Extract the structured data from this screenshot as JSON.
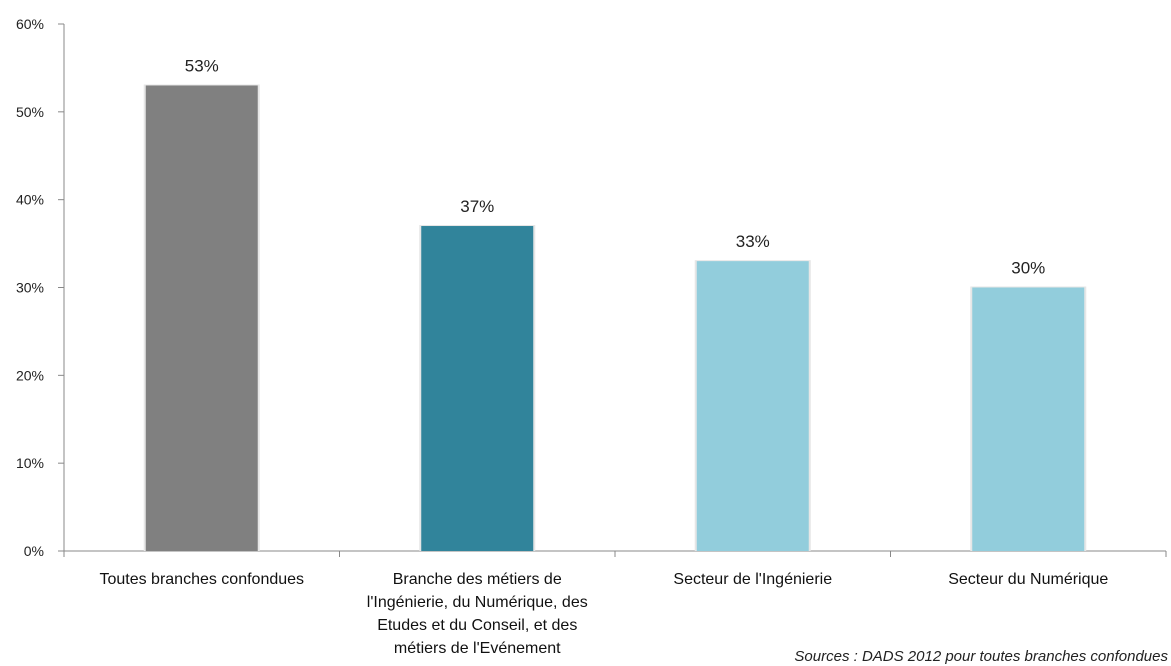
{
  "chart_data": {
    "type": "bar",
    "title": "",
    "xlabel": "",
    "ylabel": "",
    "ylim": [
      0,
      60
    ],
    "yticks": [
      "0%",
      "10%",
      "20%",
      "30%",
      "40%",
      "50%",
      "60%"
    ],
    "ytick_values": [
      0,
      10,
      20,
      30,
      40,
      50,
      60
    ],
    "grid": false,
    "categories": [
      [
        "Toutes branches confondues"
      ],
      [
        "Branche des métiers de",
        "l'Ingénierie, du Numérique, des",
        "Etudes et du Conseil, et des",
        "métiers de l'Evénement"
      ],
      [
        "Secteur de l'Ingénierie"
      ],
      [
        "Secteur du Numérique"
      ]
    ],
    "values": [
      53,
      37,
      33,
      30
    ],
    "data_labels": [
      "53%",
      "37%",
      "33%",
      "30%"
    ],
    "colors": [
      "#808080",
      "#31849b",
      "#92cddc",
      "#92cddc"
    ]
  },
  "source_note": "Sources : DADS 2012 pour toutes branches confondues"
}
